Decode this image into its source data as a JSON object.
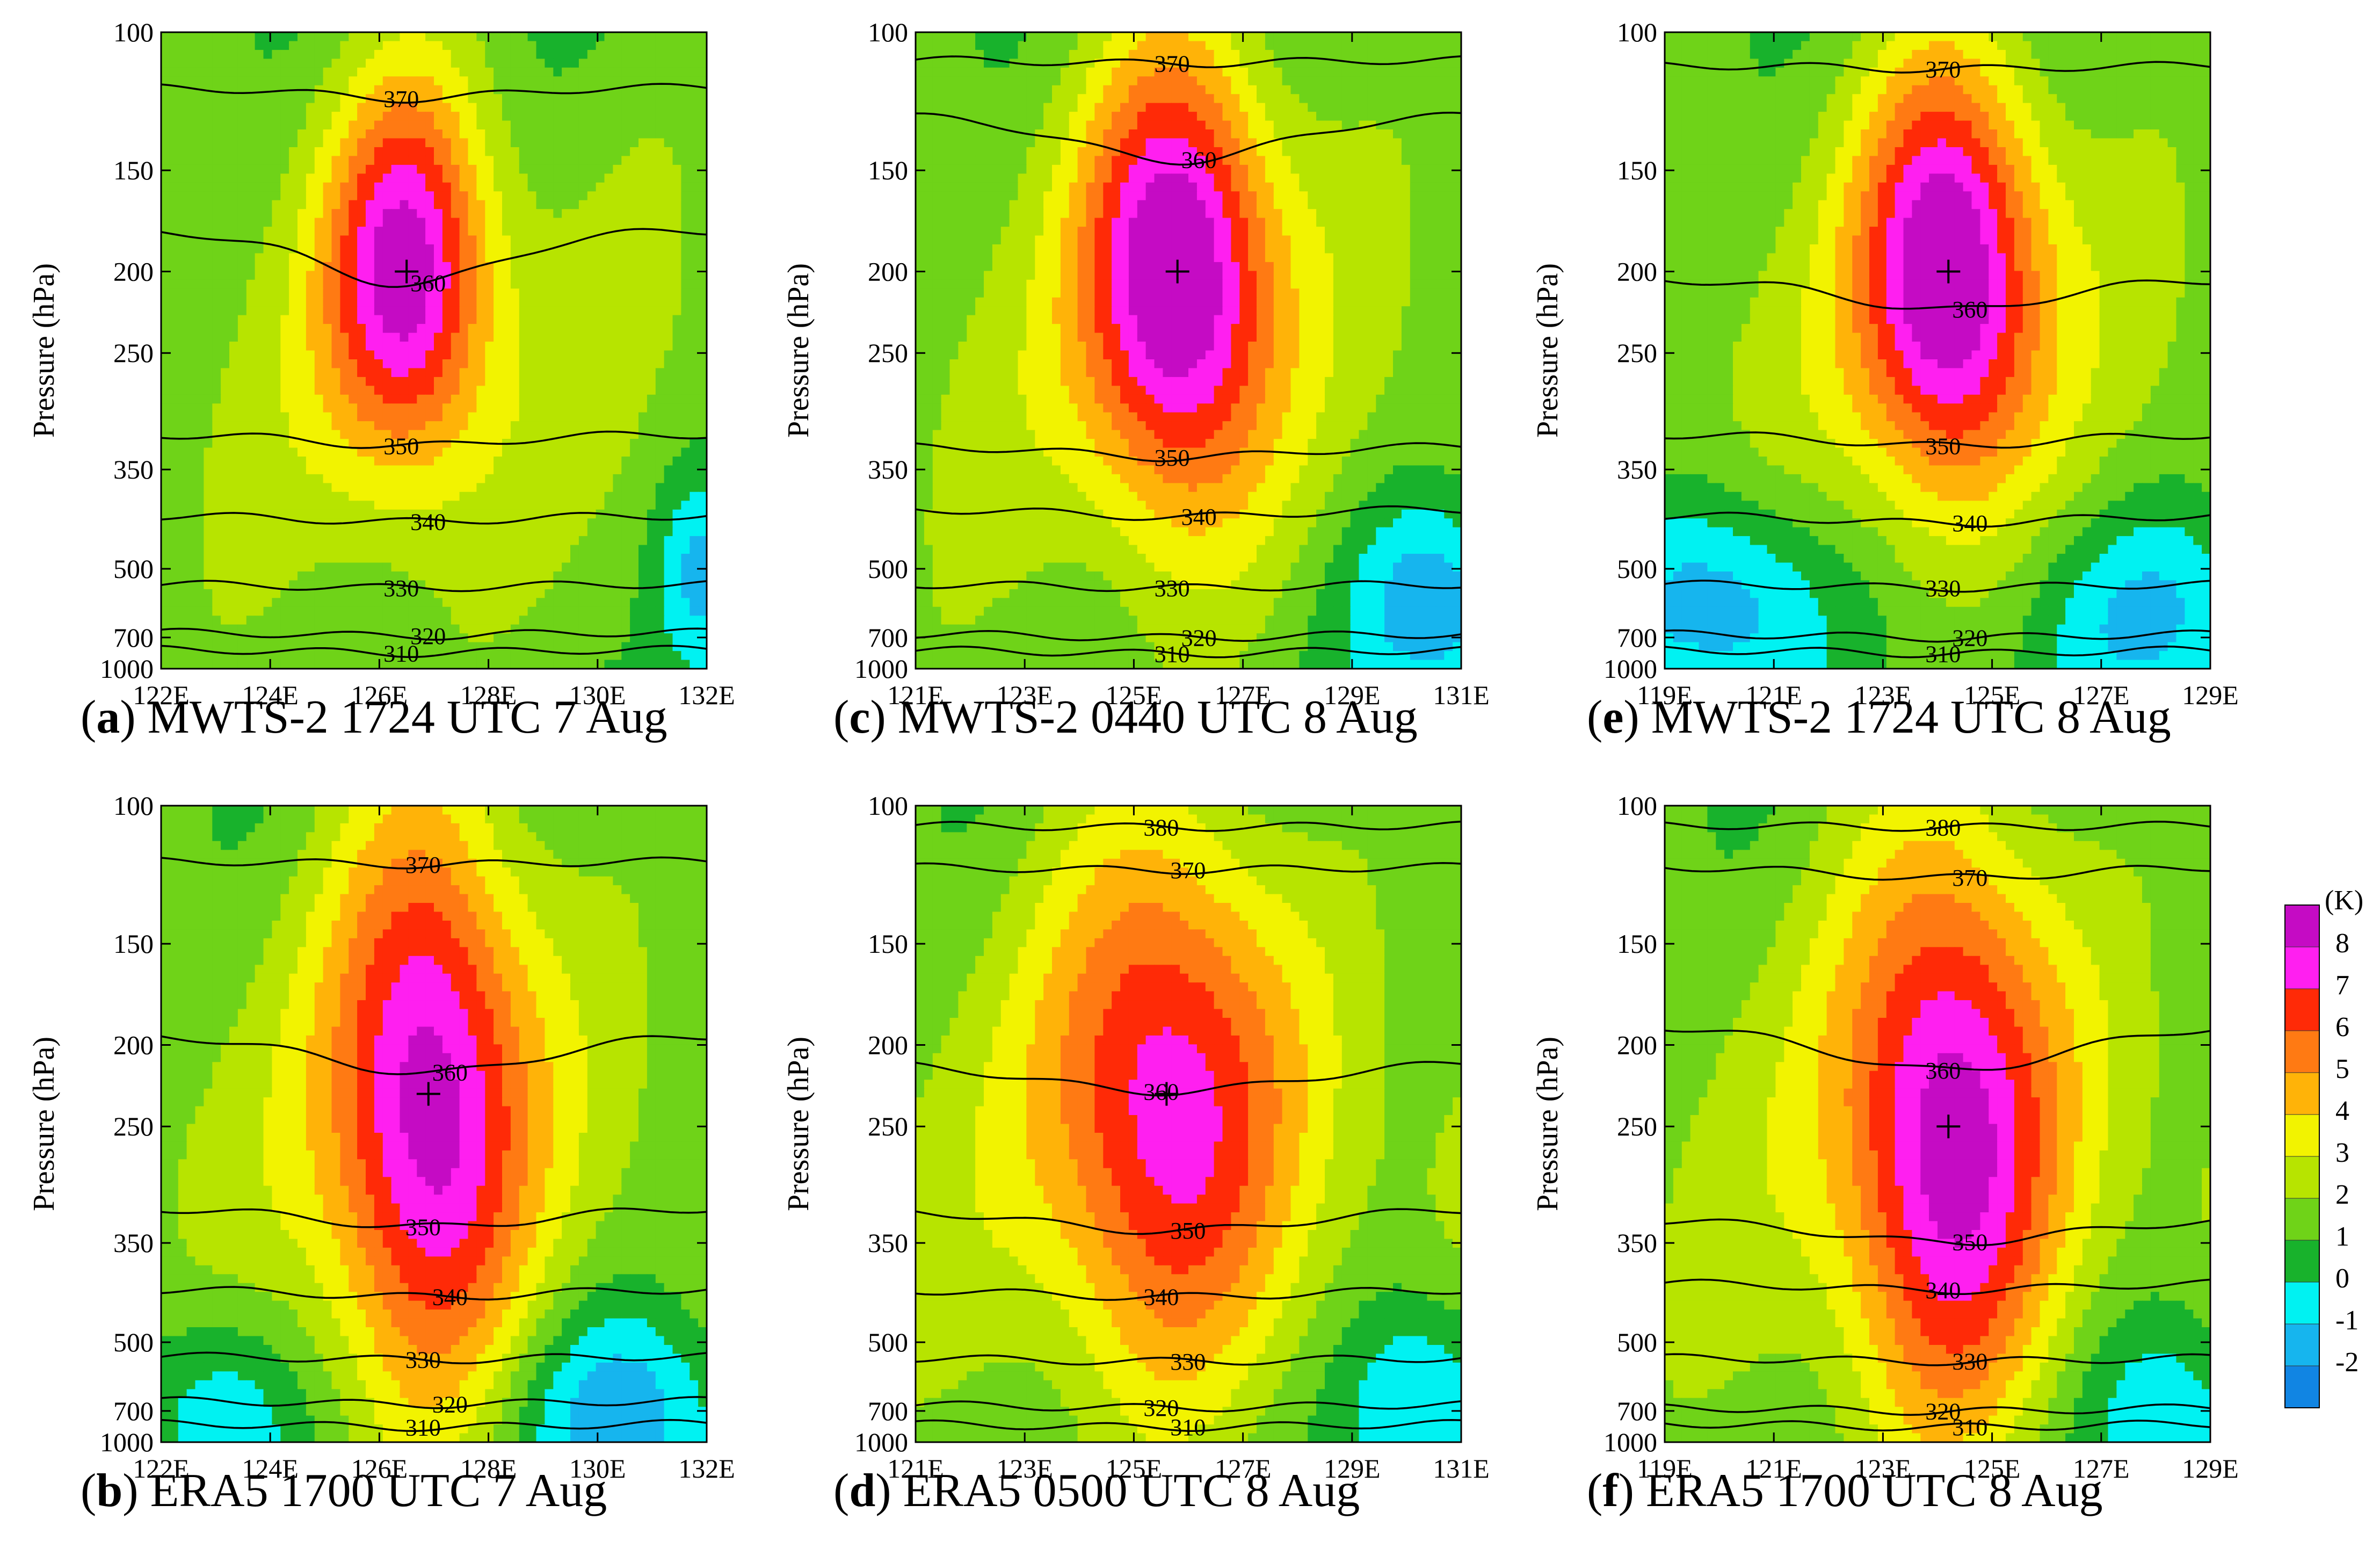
{
  "colorbar": {
    "unit": "(K)",
    "levels": [
      {
        "label": "8",
        "color": "#c50bc4"
      },
      {
        "label": "7",
        "color": "#ff1ff0"
      },
      {
        "label": "6",
        "color": "#ff2a07"
      },
      {
        "label": "5",
        "color": "#ff7a13"
      },
      {
        "label": "4",
        "color": "#ffb308"
      },
      {
        "label": "3",
        "color": "#f2f300"
      },
      {
        "label": "2",
        "color": "#b7e400"
      },
      {
        "label": "1",
        "color": "#6fd318"
      },
      {
        "label": "0",
        "color": "#18b22c"
      },
      {
        "label": "-1",
        "color": "#00f2f2"
      },
      {
        "label": "-2",
        "color": "#16b5ee"
      },
      {
        "label": "",
        "color": "#1185e3"
      }
    ]
  },
  "chart_data": [
    {
      "type": "heatmap",
      "panel_letter": "a",
      "caption": "MWTS-2 1724 UTC 7 Aug",
      "ylabel": "Pressure (hPa)",
      "y_ticks": [
        "100",
        "150",
        "200",
        "250",
        "350",
        "500",
        "700",
        "1000"
      ],
      "x_ticks": [
        "122E",
        "124E",
        "126E",
        "128E",
        "130E",
        "132E"
      ],
      "xlim": [
        122,
        132
      ],
      "ylim_hPa": [
        1000,
        100
      ],
      "center": {
        "lon": 126.5,
        "p": 200
      },
      "max_anomaly_K": 7,
      "spread_lon": 1.9,
      "spread_p": 0.38,
      "background": "green",
      "cool_pools": [
        {
          "lon": 131.9,
          "p": 520,
          "r": 0.25,
          "v": -1.2
        }
      ],
      "isentropes": [
        {
          "label": "370",
          "p": 120,
          "dip": 15
        },
        {
          "label": "360",
          "p": 180,
          "dip": 70
        },
        {
          "label": "350",
          "p": 320,
          "dip": 15
        },
        {
          "label": "340",
          "p": 420,
          "dip": 8
        },
        {
          "label": "330",
          "p": 545,
          "dip": 5
        },
        {
          "label": "320",
          "p": 685,
          "dip": 5
        },
        {
          "label": "310",
          "p": 815,
          "dip": 5
        }
      ]
    },
    {
      "type": "heatmap",
      "panel_letter": "b",
      "caption": "ERA5 1700 UTC 7 Aug",
      "ylabel": "Pressure (hPa)",
      "y_ticks": [
        "100",
        "150",
        "200",
        "250",
        "350",
        "500",
        "700",
        "1000"
      ],
      "x_ticks": [
        "122E",
        "124E",
        "126E",
        "128E",
        "130E",
        "132E"
      ],
      "xlim": [
        122,
        132
      ],
      "ylim_hPa": [
        1000,
        100
      ],
      "center": {
        "lon": 126.9,
        "p": 230
      },
      "max_anomaly_K": 7,
      "spread_lon": 2.3,
      "spread_p": 0.6,
      "background": "green",
      "cool_pools": [
        {
          "lon": 130.5,
          "p": 720,
          "r": 0.9,
          "v": -1.3
        },
        {
          "lon": 123,
          "p": 760,
          "r": 0.6,
          "v": -0.6
        }
      ],
      "isentropes": [
        {
          "label": "370",
          "p": 120,
          "dip": 5
        },
        {
          "label": "360",
          "p": 195,
          "dip": 50
        },
        {
          "label": "350",
          "p": 320,
          "dip": 25
        },
        {
          "label": "340",
          "p": 420,
          "dip": 10
        },
        {
          "label": "330",
          "p": 540,
          "dip": 5
        },
        {
          "label": "320",
          "p": 670,
          "dip": 5
        },
        {
          "label": "310",
          "p": 820,
          "dip": 5
        }
      ]
    },
    {
      "type": "heatmap",
      "panel_letter": "c",
      "caption": "MWTS-2 0440 UTC 8 Aug",
      "ylabel": "Pressure (hPa)",
      "y_ticks": [
        "100",
        "150",
        "200",
        "250",
        "350",
        "500",
        "700",
        "1000"
      ],
      "x_ticks": [
        "121E",
        "123E",
        "125E",
        "127E",
        "129E",
        "131E"
      ],
      "xlim": [
        121,
        131
      ],
      "ylim_hPa": [
        1000,
        100
      ],
      "center": {
        "lon": 125.8,
        "p": 200
      },
      "max_anomaly_K": 8,
      "spread_lon": 2.2,
      "spread_p": 0.45,
      "background": "green",
      "cool_pools": [
        {
          "lon": 130.6,
          "p": 600,
          "r": 0.7,
          "v": -1.6
        }
      ],
      "isentropes": [
        {
          "label": "370",
          "p": 110,
          "dip": 5
        },
        {
          "label": "360",
          "p": 130,
          "dip": 60
        },
        {
          "label": "350",
          "p": 330,
          "dip": 15
        },
        {
          "label": "340",
          "p": 410,
          "dip": 10
        },
        {
          "label": "330",
          "p": 545,
          "dip": 5
        },
        {
          "label": "320",
          "p": 690,
          "dip": 5
        },
        {
          "label": "310",
          "p": 820,
          "dip": 5
        }
      ]
    },
    {
      "type": "heatmap",
      "panel_letter": "d",
      "caption": "ERA5 0500 UTC 8 Aug",
      "ylabel": "Pressure (hPa)",
      "y_ticks": [
        "100",
        "150",
        "200",
        "250",
        "350",
        "500",
        "700",
        "1000"
      ],
      "x_ticks": [
        "121E",
        "123E",
        "125E",
        "127E",
        "129E",
        "131E"
      ],
      "xlim": [
        121,
        131
      ],
      "ylim_hPa": [
        1000,
        100
      ],
      "center": {
        "lon": 125.6,
        "p": 230
      },
      "max_anomaly_K": 6,
      "spread_lon": 2.8,
      "spread_p": 0.55,
      "background": "green",
      "cool_pools": [
        {
          "lon": 130.3,
          "p": 680,
          "r": 0.6,
          "v": -1.1
        }
      ],
      "isentropes": [
        {
          "label": "380",
          "p": 107,
          "dip": 3
        },
        {
          "label": "370",
          "p": 122,
          "dip": 5
        },
        {
          "label": "360",
          "p": 210,
          "dip": 40
        },
        {
          "label": "350",
          "p": 320,
          "dip": 30
        },
        {
          "label": "340",
          "p": 420,
          "dip": 10
        },
        {
          "label": "330",
          "p": 545,
          "dip": 5
        },
        {
          "label": "320",
          "p": 680,
          "dip": 5
        },
        {
          "label": "310",
          "p": 820,
          "dip": 5
        }
      ]
    },
    {
      "type": "heatmap",
      "panel_letter": "e",
      "caption": "MWTS-2 1724 UTC 8 Aug",
      "ylabel": "Pressure (hPa)",
      "y_ticks": [
        "100",
        "150",
        "200",
        "250",
        "350",
        "500",
        "700",
        "1000"
      ],
      "x_ticks": [
        "119E",
        "121E",
        "123E",
        "125E",
        "127E",
        "129E"
      ],
      "xlim": [
        119,
        129
      ],
      "ylim_hPa": [
        1000,
        100
      ],
      "center": {
        "lon": 124.2,
        "p": 200
      },
      "max_anomaly_K": 8,
      "spread_lon": 2.1,
      "spread_p": 0.42,
      "background": "green",
      "cool_pools": [
        {
          "lon": 120.0,
          "p": 600,
          "r": 0.9,
          "v": -1.6
        },
        {
          "lon": 128.0,
          "p": 620,
          "r": 1.2,
          "v": -0.8
        }
      ],
      "isentropes": [
        {
          "label": "370",
          "p": 112,
          "dip": 5
        },
        {
          "label": "360",
          "p": 205,
          "dip": 40
        },
        {
          "label": "350",
          "p": 320,
          "dip": 15
        },
        {
          "label": "340",
          "p": 420,
          "dip": 10
        },
        {
          "label": "330",
          "p": 545,
          "dip": 5
        },
        {
          "label": "320",
          "p": 690,
          "dip": 5
        },
        {
          "label": "310",
          "p": 820,
          "dip": 5
        }
      ]
    },
    {
      "type": "heatmap",
      "panel_letter": "f",
      "caption": "ERA5 1700 UTC 8 Aug",
      "ylabel": "Pressure (hPa)",
      "y_ticks": [
        "100",
        "150",
        "200",
        "250",
        "350",
        "500",
        "700",
        "1000"
      ],
      "x_ticks": [
        "119E",
        "121E",
        "123E",
        "125E",
        "127E",
        "129E"
      ],
      "xlim": [
        119,
        129
      ],
      "ylim_hPa": [
        1000,
        100
      ],
      "center": {
        "lon": 124.2,
        "p": 250
      },
      "max_anomaly_K": 7,
      "spread_lon": 2.5,
      "spread_p": 0.6,
      "background": "green",
      "cool_pools": [
        {
          "lon": 128.3,
          "p": 720,
          "r": 0.7,
          "v": -0.6
        }
      ],
      "isentropes": [
        {
          "label": "380",
          "p": 107,
          "dip": 3
        },
        {
          "label": "370",
          "p": 122,
          "dip": 15
        },
        {
          "label": "360",
          "p": 190,
          "dip": 60
        },
        {
          "label": "350",
          "p": 330,
          "dip": 30
        },
        {
          "label": "340",
          "p": 410,
          "dip": 10
        },
        {
          "label": "330",
          "p": 545,
          "dip": 5
        },
        {
          "label": "320",
          "p": 690,
          "dip": 5
        },
        {
          "label": "310",
          "p": 820,
          "dip": 5
        }
      ]
    }
  ]
}
